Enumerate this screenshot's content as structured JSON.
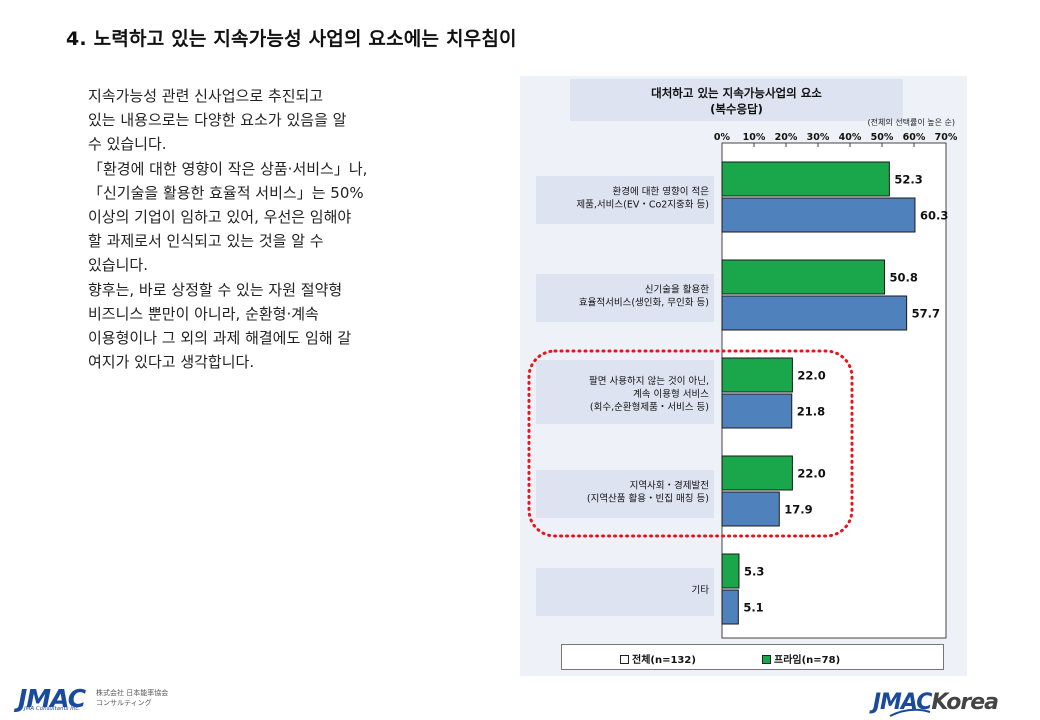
{
  "page": {
    "title": "4. 노력하고 있는 지속가능성 사업의 요소에는 치우침이",
    "body_lines": [
      "지속가능성 관련 신사업으로 추진되고",
      "있는 내용으로는 다양한 요소가 있음을 알",
      "수 있습니다.",
      "「환경에 대한 영향이 작은 상품·서비스」나,",
      "「신기술을 활용한 효율적 서비스」는 50%",
      "이상의 기업이 임하고 있어, 우선은 임해야",
      "할 과제로서 인식되고 있는 것을 알 수",
      "있습니다.",
      "향후는, 바로 상정할 수 있는 자원 절약형",
      "비즈니스 뿐만이 아니라, 순환형·계속",
      "이용형이나 그 외의 과제 해결에도 임해 갈",
      "여지가 있다고 생각합니다."
    ]
  },
  "chart_data": {
    "type": "bar",
    "orientation": "horizontal",
    "title": "대처하고 있는 지속가능사업의 요소\n(복수응답)",
    "note": "(전체의 선택률이 높은 순)",
    "x_ticks": [
      "0%",
      "10%",
      "20%",
      "30%",
      "40%",
      "50%",
      "60%",
      "70%"
    ],
    "xlim": [
      0,
      70
    ],
    "grid": false,
    "legend_position": "bottom",
    "categories": [
      [
        "환경에 대한 영향이 적은",
        "제품,서비스(EV・Co2지중화 등)"
      ],
      [
        "신기술을 활용한",
        "효율적서비스(생인화, 무인화 등)"
      ],
      [
        "팔면 사용하지 않는 것이 아닌,",
        "계속 이용형 서비스",
        "(회수,순환형제품・서비스 등)"
      ],
      [
        "지역사회・경제발전",
        "(지역산품 활용・빈집 매칭 등)"
      ],
      [
        "기타"
      ]
    ],
    "series": [
      {
        "name": "프라임(n=78)",
        "color": "#1aa64a",
        "values": [
          52.3,
          50.8,
          22.0,
          22.0,
          5.3
        ]
      },
      {
        "name": "전체(n=132)",
        "color": "#4f81bd",
        "values": [
          60.3,
          57.7,
          21.8,
          17.9,
          5.1
        ]
      }
    ],
    "legend": [
      {
        "label": "전체(n=132)",
        "color": "#ffffff"
      },
      {
        "label": "프라임(n=78)",
        "color": "#1aa64a"
      }
    ],
    "highlight": {
      "categories": [
        2,
        3
      ],
      "color": "#e8141b",
      "style": "dotted"
    }
  },
  "logos": {
    "left_main": "JMAC",
    "left_jp": [
      "株式会社 日本能率協会",
      "コンサルティング"
    ],
    "left_sub": "JMA Consultants Inc.",
    "right_main_a": "JMAC",
    "right_main_b": "Korea"
  }
}
